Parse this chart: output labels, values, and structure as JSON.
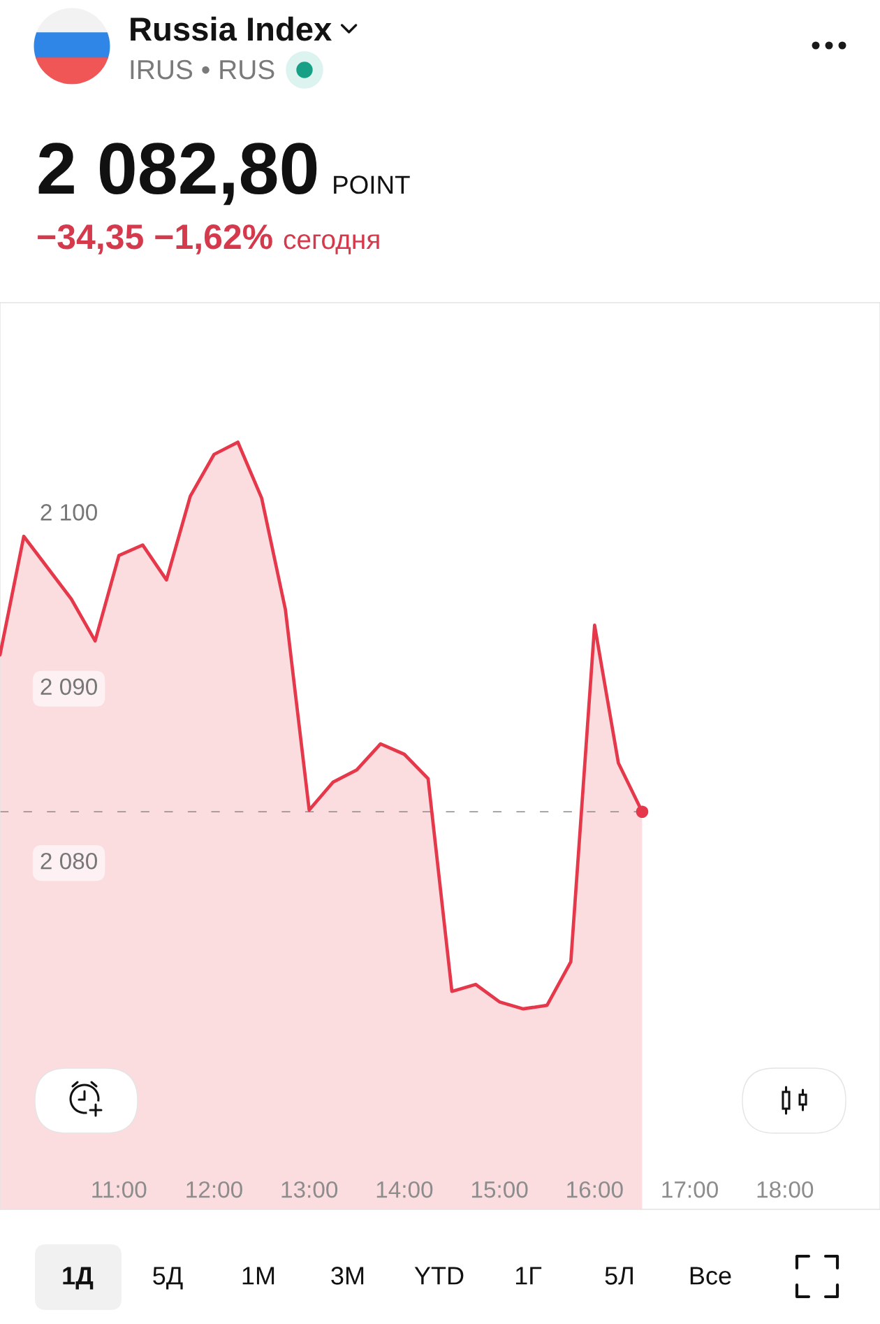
{
  "chart_data": {
    "type": "area",
    "title": "Russia Index",
    "subtitle": "IRUS • RUS",
    "annotations": [
      "2 082,80",
      "POINT",
      "−34,35 −1,62%",
      "сегодня",
      "1Д",
      "5Д",
      "1М",
      "3М",
      "YTD",
      "1Г",
      "5Л",
      "Все"
    ],
    "x": [
      9.75,
      10.0,
      10.5,
      10.75,
      11.0,
      11.25,
      11.5,
      11.75,
      12.0,
      12.25,
      12.5,
      12.75,
      13.0,
      13.25,
      13.5,
      13.75,
      14.0,
      14.25,
      14.5,
      14.75,
      15.0,
      15.25,
      15.5,
      15.75,
      16.0,
      16.25,
      16.5
    ],
    "series": [
      {
        "color": "#e5384a",
        "values": [
          2091.8,
          2098.6,
          2095.0,
          2092.6,
          2097.5,
          2098.1,
          2096.1,
          2100.9,
          2103.3,
          2104.0,
          2100.8,
          2094.4,
          2082.9,
          2084.5,
          2085.2,
          2086.7,
          2086.1,
          2084.7,
          2072.5,
          2072.9,
          2071.9,
          2071.5,
          2071.7,
          2074.2,
          2093.5,
          2085.6,
          2082.8
        ]
      },
      {
        "type": "scatter",
        "color": "#e5384a",
        "x": [
          16.5
        ],
        "values": [
          2082.8
        ]
      }
    ],
    "xlim": [
      9.75,
      19.0
    ],
    "xticks": [
      {
        "value": 11,
        "label": "11:00"
      },
      {
        "value": 12,
        "label": "12:00"
      },
      {
        "value": 13,
        "label": "13:00"
      },
      {
        "value": 14,
        "label": "14:00"
      },
      {
        "value": 15,
        "label": "15:00"
      },
      {
        "value": 16,
        "label": "16:00"
      },
      {
        "value": 17,
        "label": "17:00"
      },
      {
        "value": 18,
        "label": "18:00"
      }
    ],
    "ylim": [
      2060,
      2112
    ],
    "yticks": [
      {
        "value": 2080,
        "label": "2 080"
      },
      {
        "value": 2090,
        "label": "2 090"
      },
      {
        "value": 2100,
        "label": "2 100"
      }
    ],
    "ref_lines": [
      {
        "axis": "y",
        "value": 2082.8,
        "color": "#8a8a8a",
        "line_style": "dashed"
      }
    ]
  }
}
